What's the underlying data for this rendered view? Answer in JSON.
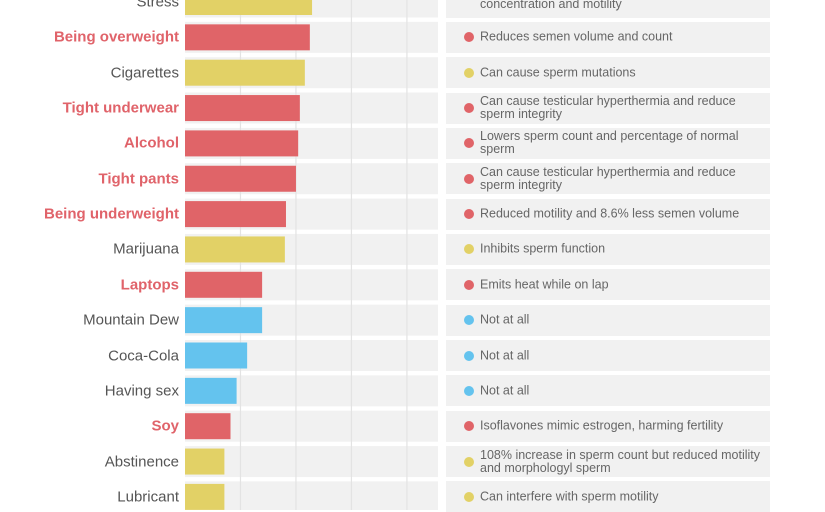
{
  "chart_data": {
    "type": "bar",
    "orientation": "horizontal",
    "title": "",
    "xlabel": "",
    "ylabel": "",
    "xlim": [
      0,
      45.6
    ],
    "grid": true,
    "colors": {
      "red": "#e06468",
      "yellow": "#e2d166",
      "blue": "#64c3ee"
    },
    "categories": [
      "Stress",
      "Being overweight",
      "Cigarettes",
      "Tight underwear",
      "Alcohol",
      "Tight pants",
      "Being underweight",
      "Marijuana",
      "Laptops",
      "Mountain Dew",
      "Coca-Cola",
      "Having sex",
      "Soy",
      "Abstinence",
      "Lubricant"
    ],
    "values": [
      22.9,
      22.5,
      21.6,
      20.7,
      20.4,
      20.0,
      18.2,
      18.0,
      13.9,
      13.9,
      11.2,
      9.3,
      8.2,
      7.1,
      7.1
    ],
    "category_colors": [
      "yellow",
      "red",
      "yellow",
      "red",
      "red",
      "red",
      "red",
      "yellow",
      "red",
      "blue",
      "blue",
      "blue",
      "red",
      "yellow",
      "yellow"
    ],
    "descriptions": [
      "concentration and motility",
      "Reduces semen volume and count",
      "Can cause sperm mutations",
      "Can cause testicular hyperthermia and reduce sperm integrity",
      "Lowers sperm count and percentage of normal sperm",
      "Can cause testicular hyperthermia and reduce sperm integrity",
      "Reduced motility and 8.6% less semen volume",
      "Inhibits sperm function",
      "Emits heat while on lap",
      "Not at all",
      "Not at all",
      "Not at all",
      "Isoflavones mimic estrogen, harming fertility",
      "108% increase in sperm count but reduced motility and morphologyl sperm",
      "Can interfere with sperm motility"
    ]
  }
}
